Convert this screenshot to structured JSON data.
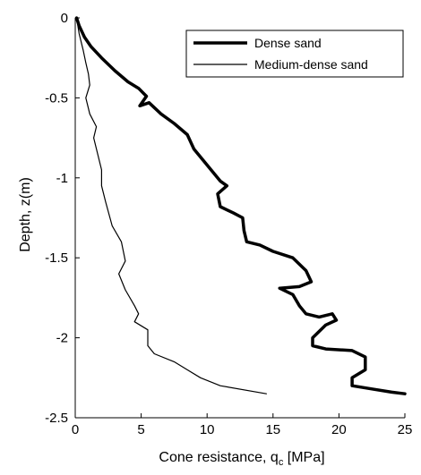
{
  "chart_data": {
    "type": "line",
    "xlabel": "Cone resistance, q",
    "xlabel_sub": "c",
    "xlabel_unit": " [MPa]",
    "ylabel": "Depth, z(m)",
    "xlim": [
      0,
      25
    ],
    "ylim": [
      -2.5,
      0
    ],
    "xticks": [
      0,
      5,
      10,
      15,
      20,
      25
    ],
    "yticks": [
      0,
      -0.5,
      -1,
      -1.5,
      -2,
      -2.5
    ],
    "grid": false,
    "legend_position": "top-right",
    "series": [
      {
        "name": "Dense sand",
        "color": "#000000",
        "style": "thick",
        "points": [
          [
            0.1,
            0
          ],
          [
            0.3,
            -0.05
          ],
          [
            0.7,
            -0.12
          ],
          [
            1.2,
            -0.18
          ],
          [
            2.0,
            -0.25
          ],
          [
            3.0,
            -0.33
          ],
          [
            4.0,
            -0.4
          ],
          [
            4.8,
            -0.44
          ],
          [
            5.4,
            -0.49
          ],
          [
            4.9,
            -0.55
          ],
          [
            5.6,
            -0.53
          ],
          [
            6.5,
            -0.6
          ],
          [
            7.5,
            -0.66
          ],
          [
            8.5,
            -0.73
          ],
          [
            9.0,
            -0.82
          ],
          [
            10.0,
            -0.92
          ],
          [
            11.0,
            -1.02
          ],
          [
            11.5,
            -1.05
          ],
          [
            10.8,
            -1.1
          ],
          [
            11.0,
            -1.18
          ],
          [
            12.0,
            -1.22
          ],
          [
            12.7,
            -1.25
          ],
          [
            12.8,
            -1.33
          ],
          [
            13.0,
            -1.4
          ],
          [
            14.0,
            -1.42
          ],
          [
            15.0,
            -1.46
          ],
          [
            16.5,
            -1.5
          ],
          [
            17.5,
            -1.58
          ],
          [
            17.9,
            -1.65
          ],
          [
            17.0,
            -1.68
          ],
          [
            15.5,
            -1.69
          ],
          [
            16.5,
            -1.73
          ],
          [
            17.0,
            -1.8
          ],
          [
            17.5,
            -1.85
          ],
          [
            18.5,
            -1.87
          ],
          [
            19.5,
            -1.85
          ],
          [
            19.8,
            -1.89
          ],
          [
            19.0,
            -1.92
          ],
          [
            18.0,
            -2.0
          ],
          [
            18.0,
            -2.05
          ],
          [
            19.0,
            -2.07
          ],
          [
            21.0,
            -2.08
          ],
          [
            22.0,
            -2.12
          ],
          [
            22.0,
            -2.2
          ],
          [
            21.0,
            -2.25
          ],
          [
            21.0,
            -2.3
          ],
          [
            22.5,
            -2.32
          ],
          [
            24.0,
            -2.34
          ],
          [
            25.0,
            -2.35
          ]
        ]
      },
      {
        "name": "Medium-dense sand",
        "color": "#000000",
        "style": "thin",
        "points": [
          [
            0.1,
            0
          ],
          [
            0.3,
            -0.1
          ],
          [
            0.6,
            -0.2
          ],
          [
            0.8,
            -0.28
          ],
          [
            1.0,
            -0.35
          ],
          [
            1.1,
            -0.42
          ],
          [
            0.8,
            -0.5
          ],
          [
            1.1,
            -0.6
          ],
          [
            1.6,
            -0.68
          ],
          [
            1.4,
            -0.75
          ],
          [
            1.7,
            -0.85
          ],
          [
            2.0,
            -0.95
          ],
          [
            2.0,
            -1.05
          ],
          [
            2.3,
            -1.15
          ],
          [
            2.8,
            -1.3
          ],
          [
            3.5,
            -1.4
          ],
          [
            3.8,
            -1.52
          ],
          [
            3.3,
            -1.6
          ],
          [
            3.8,
            -1.7
          ],
          [
            4.5,
            -1.8
          ],
          [
            4.8,
            -1.85
          ],
          [
            4.5,
            -1.9
          ],
          [
            5.5,
            -1.95
          ],
          [
            5.5,
            -2.05
          ],
          [
            6.0,
            -2.1
          ],
          [
            7.5,
            -2.15
          ],
          [
            8.5,
            -2.2
          ],
          [
            9.5,
            -2.25
          ],
          [
            11.0,
            -2.3
          ],
          [
            14.5,
            -2.35
          ]
        ]
      }
    ]
  }
}
